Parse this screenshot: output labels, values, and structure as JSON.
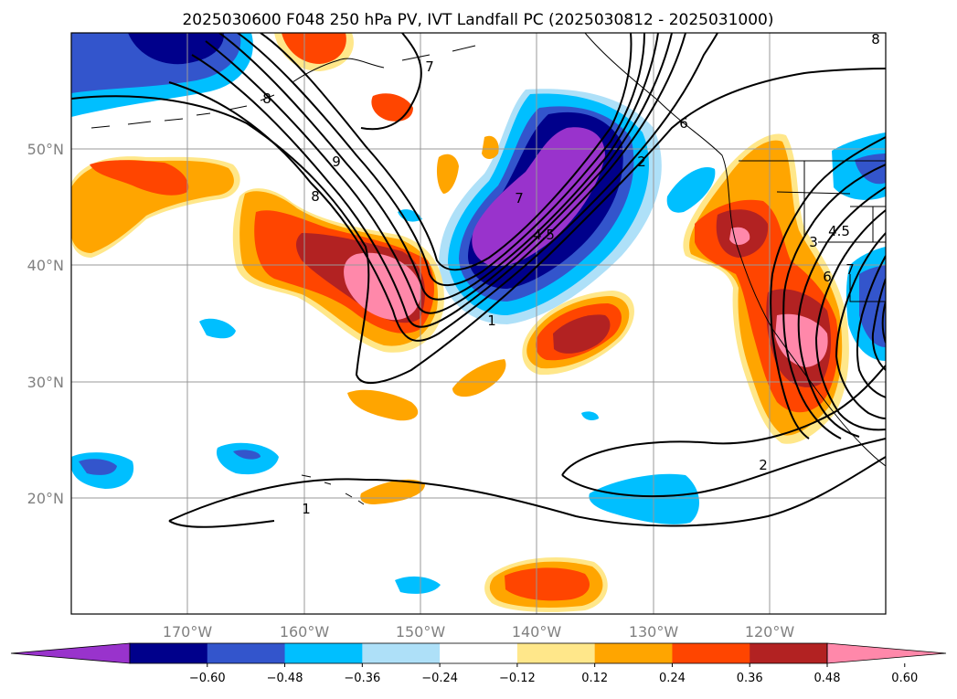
{
  "title": "2025030600 F048 250 hPa PV, IVT Landfall PC (2025030812 - 2025031000)",
  "map": {
    "lon_labels": [
      "170°W",
      "160°W",
      "150°W",
      "140°W",
      "130°W",
      "120°W"
    ],
    "lat_labels": [
      "50°N",
      "40°N",
      "30°N",
      "20°N"
    ],
    "gridlines": true,
    "contour_labels": [
      "7",
      "8",
      "9",
      "8",
      "7",
      "1",
      "4.5",
      "2",
      "2",
      "1",
      "3",
      "4.5",
      "6",
      "7",
      "6",
      "8"
    ]
  },
  "colorbar": {
    "ticks": [
      "−0.60",
      "−0.48",
      "−0.36",
      "−0.24",
      "−0.12",
      "0.12",
      "0.24",
      "0.36",
      "0.48",
      "0.60"
    ],
    "colors": [
      "#9933cc",
      "#00008b",
      "#3355cc",
      "#00bfff",
      "#aee0f8",
      "#ffffff",
      "#ffe78a",
      "#ffa500",
      "#ff4500",
      "#b22222",
      "#ff88aa"
    ],
    "extend": "both"
  }
}
